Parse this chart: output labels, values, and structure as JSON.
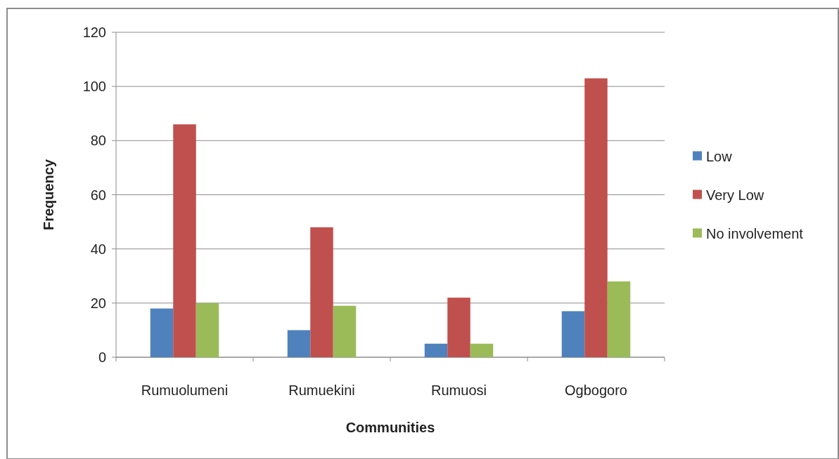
{
  "chart_data": {
    "type": "bar",
    "xlabel": "Communities",
    "ylabel": "Frequency",
    "categories": [
      "Rumuolumeni",
      "Rumuekini",
      "Rumuosi",
      "Ogbogoro"
    ],
    "series": [
      {
        "name": "Low",
        "color": "#4f81bd",
        "values": [
          18,
          10,
          5,
          17
        ]
      },
      {
        "name": "Very Low",
        "color": "#c0504d",
        "values": [
          86,
          48,
          22,
          103
        ]
      },
      {
        "name": "No involvement",
        "color": "#9bbb59",
        "values": [
          20,
          19,
          5,
          28
        ]
      }
    ],
    "ylim": [
      0,
      120
    ],
    "yticks": [
      0,
      20,
      40,
      60,
      80,
      100,
      120
    ],
    "grid": "y",
    "legend": "right"
  }
}
